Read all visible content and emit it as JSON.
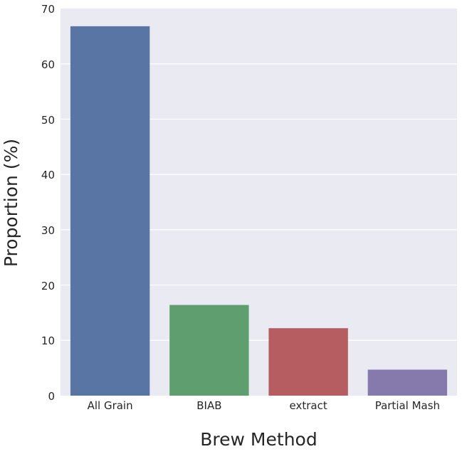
{
  "chart_data": {
    "type": "bar",
    "categories": [
      "All Grain",
      "BIAB",
      "extract",
      "Partial Mash"
    ],
    "values": [
      66.8,
      16.4,
      12.2,
      4.7
    ],
    "colors": [
      "#5875a4",
      "#5f9e6e",
      "#b55d60",
      "#857aab"
    ],
    "title": "",
    "xlabel": "Brew Method",
    "ylabel": "Proportion (%)",
    "ylim": [
      0,
      70
    ],
    "yticks": [
      "0",
      "10",
      "20",
      "30",
      "40",
      "50",
      "60",
      "70"
    ],
    "grid": true,
    "background": "#eaeaf2"
  }
}
